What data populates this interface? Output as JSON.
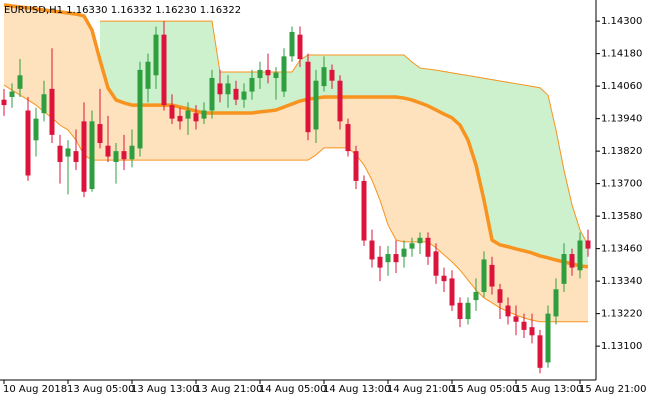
{
  "chart_data": {
    "type": "candlestick",
    "title": "EURUSD,H1  1.16330 1.16332 1.16230 1.16322",
    "categories": [
      "10 Aug 2018",
      null,
      null,
      null,
      null,
      null,
      null,
      null,
      "13 Aug 05:00",
      null,
      null,
      null,
      null,
      null,
      null,
      null,
      "13 Aug 13:00",
      null,
      null,
      null,
      null,
      null,
      null,
      null,
      "13 Aug 21:00",
      null,
      null,
      null,
      null,
      null,
      null,
      null,
      "14 Aug 05:00",
      null,
      null,
      null,
      null,
      null,
      null,
      null,
      "14 Aug 13:00",
      null,
      null,
      null,
      null,
      null,
      null,
      null,
      "14 Aug 21:00",
      null,
      null,
      null,
      null,
      null,
      null,
      null,
      "15 Aug 05:00",
      null,
      null,
      null,
      null,
      null,
      null,
      null,
      "15 Aug 13:00",
      null,
      null,
      null,
      null,
      null,
      null,
      null,
      "15 Aug 21:00",
      null
    ],
    "open": [
      1.1401,
      1.1402,
      1.1405,
      1.1397,
      1.1386,
      1.1396,
      1.1405,
      1.1384,
      1.138,
      1.1382,
      1.1393,
      1.1368,
      1.1392,
      1.1384,
      1.1378,
      1.1382,
      1.1379,
      1.1383,
      1.1405,
      1.141,
      1.1425,
      1.1399,
      1.1395,
      1.1394,
      1.1396,
      1.1394,
      1.1397,
      1.1407,
      1.1403,
      1.1405,
      1.1401,
      1.1404,
      1.1409,
      1.1412,
      1.1409,
      1.1404,
      1.1417,
      1.1425,
      1.1415,
      1.139,
      1.1406,
      1.1412,
      1.1408,
      1.1392,
      1.1382,
      1.1371,
      1.1349,
      1.1343,
      1.1341,
      1.1344,
      1.1343,
      1.1346,
      1.1348,
      1.135,
      1.1345,
      1.1336,
      1.1335,
      1.1326,
      1.132,
      1.1327,
      1.133,
      1.134,
      1.1331,
      1.1325,
      1.1321,
      1.1319,
      1.1317,
      1.1314,
      1.1304,
      1.1321,
      1.1333,
      1.1344,
      1.1338,
      1.1349
    ],
    "high": [
      1.1405,
      1.1407,
      1.1416,
      1.1402,
      1.1398,
      1.1408,
      1.142,
      1.1388,
      1.1386,
      1.139,
      1.14,
      1.1397,
      1.1405,
      1.1395,
      1.1385,
      1.1388,
      1.139,
      1.1415,
      1.1418,
      1.1428,
      1.143,
      1.1403,
      1.1398,
      1.14,
      1.1399,
      1.14,
      1.1412,
      1.1412,
      1.141,
      1.1408,
      1.1407,
      1.1412,
      1.1415,
      1.1418,
      1.1413,
      1.142,
      1.1428,
      1.1428,
      1.1418,
      1.1412,
      1.1417,
      1.1414,
      1.141,
      1.1394,
      1.1384,
      1.1373,
      1.1353,
      1.1347,
      1.1347,
      1.1349,
      1.1349,
      1.135,
      1.1352,
      1.1352,
      1.1348,
      1.1339,
      1.1338,
      1.1328,
      1.1328,
      1.1335,
      1.1345,
      1.1343,
      1.1333,
      1.1328,
      1.1325,
      1.1322,
      1.1322,
      1.1316,
      1.1325,
      1.1335,
      1.1348,
      1.1346,
      1.1352,
      1.1353
    ],
    "low": [
      1.1395,
      1.1398,
      1.1402,
      1.1371,
      1.138,
      1.1393,
      1.1385,
      1.137,
      1.1366,
      1.1375,
      1.1365,
      1.1367,
      1.1383,
      1.1378,
      1.137,
      1.1375,
      1.1376,
      1.138,
      1.14,
      1.1405,
      1.1397,
      1.1392,
      1.139,
      1.1388,
      1.139,
      1.1392,
      1.1394,
      1.14,
      1.1398,
      1.1399,
      1.1398,
      1.1401,
      1.1405,
      1.1407,
      1.1401,
      1.1402,
      1.1415,
      1.1413,
      1.1386,
      1.1385,
      1.1404,
      1.1405,
      1.139,
      1.138,
      1.1368,
      1.1347,
      1.1339,
      1.1334,
      1.1336,
      1.1337,
      1.1339,
      1.1343,
      1.1344,
      1.134,
      1.1333,
      1.133,
      1.1323,
      1.1317,
      1.1318,
      1.1323,
      1.1328,
      1.1329,
      1.132,
      1.1318,
      1.1314,
      1.1313,
      1.1311,
      1.13,
      1.1302,
      1.1318,
      1.133,
      1.1336,
      1.1335,
      1.1343
    ],
    "close": [
      1.1399,
      1.1404,
      1.141,
      1.1373,
      1.1394,
      1.1403,
      1.1388,
      1.1378,
      1.1383,
      1.1378,
      1.1367,
      1.1393,
      1.1385,
      1.138,
      1.1382,
      1.1379,
      1.1384,
      1.1412,
      1.1415,
      1.1425,
      1.1399,
      1.1394,
      1.1393,
      1.1397,
      1.1393,
      1.1397,
      1.1409,
      1.1403,
      1.1407,
      1.1401,
      1.1404,
      1.1409,
      1.1412,
      1.141,
      1.1411,
      1.1417,
      1.1426,
      1.1416,
      1.1389,
      1.1408,
      1.1413,
      1.1408,
      1.1393,
      1.1382,
      1.1371,
      1.1349,
      1.1342,
      1.1339,
      1.1344,
      1.1341,
      1.1346,
      1.1348,
      1.135,
      1.1343,
      1.1336,
      1.1334,
      1.1325,
      1.132,
      1.1326,
      1.133,
      1.1342,
      1.1332,
      1.1326,
      1.1321,
      1.1319,
      1.1316,
      1.1314,
      1.1302,
      1.1322,
      1.1331,
      1.1344,
      1.1339,
      1.1349,
      1.1346
    ],
    "up_color": "#2e9e3f",
    "down_color": "#dc143c",
    "channel": {
      "upper": [
        null,
        null,
        null,
        null,
        null,
        null,
        null,
        null,
        null,
        null,
        null,
        null,
        1.143,
        1.143,
        1.143,
        1.143,
        1.143,
        1.143,
        1.143,
        1.143,
        1.143,
        1.143,
        1.143,
        1.143,
        1.143,
        1.143,
        1.143,
        1.14112,
        1.14112,
        1.14112,
        1.14112,
        1.14112,
        1.14112,
        1.14112,
        1.14112,
        1.14112,
        1.14112,
        1.14156,
        1.14175,
        1.14175,
        1.14175,
        1.14175,
        1.14175,
        1.14175,
        1.14175,
        1.14175,
        1.14175,
        1.14175,
        1.14175,
        1.14175,
        1.14175,
        1.14149,
        1.14127,
        1.14123,
        1.14119,
        1.14114,
        1.14109,
        1.14104,
        1.14099,
        1.14094,
        1.14089,
        1.14084,
        1.14079,
        1.14074,
        1.14069,
        1.14064,
        1.14059,
        1.14054,
        1.14027,
        1.13898,
        1.1375,
        1.13622,
        1.13529,
        1.13474
      ],
      "middle": [
        1.1436,
        1.14356,
        1.14352,
        1.14349,
        1.14345,
        1.14341,
        1.14337,
        1.14334,
        1.1433,
        1.14326,
        1.14319,
        1.14267,
        1.14156,
        1.14053,
        1.14009,
        1.13998,
        1.1399,
        1.1399,
        1.1399,
        1.1399,
        1.1399,
        1.1399,
        1.13983,
        1.13976,
        1.13968,
        1.13961,
        1.13961,
        1.13961,
        1.13961,
        1.13961,
        1.13961,
        1.13961,
        1.13965,
        1.13968,
        1.13972,
        1.13983,
        1.13994,
        1.14005,
        1.14012,
        1.14016,
        1.1402,
        1.1402,
        1.1402,
        1.1402,
        1.1402,
        1.1402,
        1.1402,
        1.1402,
        1.1402,
        1.1402,
        1.14016,
        1.14009,
        1.13998,
        1.13987,
        1.13972,
        1.13957,
        1.13943,
        1.13916,
        1.13861,
        1.13769,
        1.13639,
        1.13492,
        1.13474,
        1.13467,
        1.13459,
        1.13452,
        1.13444,
        1.13433,
        1.13426,
        1.13418,
        1.13411,
        1.13404,
        1.13396,
        1.13393
      ],
      "lower": [
        1.14064,
        1.14045,
        1.14027,
        1.14009,
        1.1399,
        1.13965,
        1.13943,
        1.13916,
        1.13898,
        1.13861,
        1.13806,
        1.13787,
        1.13787,
        1.13787,
        1.13787,
        1.13787,
        1.13787,
        1.13787,
        1.13787,
        1.13787,
        1.13787,
        1.13787,
        1.13787,
        1.13787,
        1.13787,
        1.13787,
        1.13787,
        1.13787,
        1.13787,
        1.13787,
        1.13787,
        1.13787,
        1.13787,
        1.13787,
        1.13787,
        1.13787,
        1.13787,
        1.13787,
        1.13787,
        1.13806,
        1.13832,
        1.13832,
        1.13832,
        1.13832,
        1.13806,
        1.13769,
        1.13713,
        1.13639,
        1.13548,
        1.13492,
        1.13485,
        1.13485,
        1.13485,
        1.13485,
        1.13463,
        1.13437,
        1.13411,
        1.13381,
        1.13344,
        1.13307,
        1.13278,
        1.1326,
        1.13241,
        1.13227,
        1.13215,
        1.13204,
        1.13196,
        1.1319,
        1.1319,
        1.1319,
        1.1319,
        1.1319,
        1.1319,
        1.1319
      ],
      "line_color": "#f7931e",
      "upper_fill": "#cdf0cd",
      "lower_fill": "#fde2bd"
    },
    "ylim": [
      1.12975,
      1.14378
    ],
    "yticks": [
      {
        "value": 1.143,
        "label": "1.14300"
      },
      {
        "value": 1.1418,
        "label": "1.14180"
      },
      {
        "value": 1.1406,
        "label": "1.14060"
      },
      {
        "value": 1.1394,
        "label": "1.13940"
      },
      {
        "value": 1.1382,
        "label": "1.13820"
      },
      {
        "value": 1.137,
        "label": "1.13700"
      },
      {
        "value": 1.1358,
        "label": "1.13580"
      },
      {
        "value": 1.1346,
        "label": "1.13460"
      },
      {
        "value": 1.1334,
        "label": "1.13340"
      },
      {
        "value": 1.1322,
        "label": "1.13220"
      },
      {
        "value": 1.131,
        "label": "1.13100"
      }
    ]
  }
}
